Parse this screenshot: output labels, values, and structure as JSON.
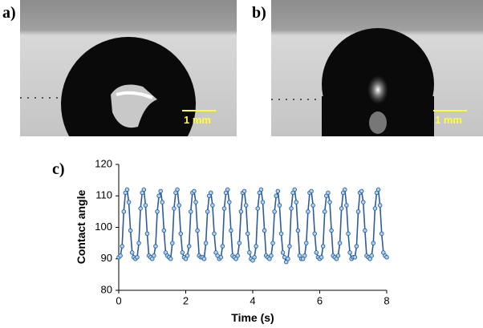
{
  "panels": [
    {
      "label": "a)",
      "scale_bar": "1 mm"
    },
    {
      "label": "b)",
      "scale_bar": "1 mm"
    }
  ],
  "chart_data": {
    "type": "line",
    "panel_label": "c)",
    "x_label": "Time (s)",
    "y_label": "Contact angle",
    "xlim": [
      0,
      8
    ],
    "ylim": [
      80,
      120
    ],
    "xticks": [
      0,
      2,
      4,
      6,
      8
    ],
    "yticks": [
      80,
      90,
      100,
      110,
      120
    ],
    "x": [
      0,
      0.05,
      0.1,
      0.15,
      0.2,
      0.25,
      0.3,
      0.35,
      0.4,
      0.45,
      0.5,
      0.55,
      0.6,
      0.65,
      0.7,
      0.75,
      0.8,
      0.85,
      0.9,
      0.95,
      1,
      1.05,
      1.1,
      1.15,
      1.2,
      1.25,
      1.3,
      1.35,
      1.4,
      1.45,
      1.5,
      1.55,
      1.6,
      1.65,
      1.7,
      1.75,
      1.8,
      1.85,
      1.9,
      1.95,
      2,
      2.05,
      2.1,
      2.15,
      2.2,
      2.25,
      2.3,
      2.35,
      2.4,
      2.45,
      2.5,
      2.55,
      2.6,
      2.65,
      2.7,
      2.75,
      2.8,
      2.85,
      2.9,
      2.95,
      3,
      3.05,
      3.1,
      3.15,
      3.2,
      3.25,
      3.3,
      3.35,
      3.4,
      3.45,
      3.5,
      3.55,
      3.6,
      3.65,
      3.7,
      3.75,
      3.8,
      3.85,
      3.9,
      3.95,
      4,
      4.05,
      4.1,
      4.15,
      4.2,
      4.25,
      4.3,
      4.35,
      4.4,
      4.45,
      4.5,
      4.55,
      4.6,
      4.65,
      4.7,
      4.75,
      4.8,
      4.85,
      4.9,
      4.95,
      5,
      5.05,
      5.1,
      5.15,
      5.2,
      5.25,
      5.3,
      5.35,
      5.4,
      5.45,
      5.5,
      5.55,
      5.6,
      5.65,
      5.7,
      5.75,
      5.8,
      5.85,
      5.9,
      5.95,
      6,
      6.05,
      6.1,
      6.15,
      6.2,
      6.25,
      6.3,
      6.35,
      6.4,
      6.45,
      6.5,
      6.55,
      6.6,
      6.65,
      6.7,
      6.75,
      6.8,
      6.85,
      6.9,
      6.95,
      7,
      7.05,
      7.1,
      7.15,
      7.2,
      7.25,
      7.3,
      7.35,
      7.4,
      7.45,
      7.5,
      7.55,
      7.6,
      7.65,
      7.7,
      7.75,
      7.8,
      7.85,
      7.9,
      7.95,
      8
    ],
    "series": [
      {
        "color": "#2e5c9a",
        "marker_color": "#a9d6ee",
        "values": [
          90.5,
          91,
          94,
          105,
          111,
          112,
          108,
          99,
          92,
          90.5,
          90,
          90.5,
          95,
          106,
          111,
          112,
          107,
          98,
          91,
          90.5,
          90,
          91,
          94,
          105,
          110,
          111.5,
          108,
          99,
          92,
          91,
          90.5,
          90,
          95,
          106,
          111,
          112,
          107,
          98,
          92,
          90.5,
          90,
          91,
          94,
          105,
          111,
          111.5,
          108,
          99,
          91,
          90.5,
          90.5,
          90,
          95,
          105,
          110,
          111,
          107,
          98,
          92,
          91,
          90,
          90.5,
          94,
          106,
          111,
          112,
          108,
          99,
          91,
          90.5,
          90,
          91,
          95,
          105,
          111,
          111.5,
          107,
          98,
          92,
          90,
          89.5,
          90.5,
          94,
          106,
          111,
          112,
          108,
          99,
          91,
          90.5,
          90,
          91,
          95,
          105,
          110,
          111.5,
          107,
          98,
          92,
          90.5,
          89,
          90,
          94,
          106,
          111,
          112,
          108,
          99,
          91,
          90,
          90,
          91,
          95,
          105,
          111,
          111.5,
          107,
          98,
          92,
          90.5,
          90,
          90.5,
          94,
          105,
          110,
          111,
          108,
          99,
          91,
          90.5,
          90,
          91,
          95,
          106,
          111,
          112,
          107,
          98,
          92,
          90,
          90.5,
          90.5,
          94,
          105,
          111,
          111.5,
          108,
          99,
          91,
          90.5,
          90,
          91,
          95,
          106,
          111,
          112,
          107,
          98,
          92,
          91,
          90.5
        ]
      }
    ]
  }
}
